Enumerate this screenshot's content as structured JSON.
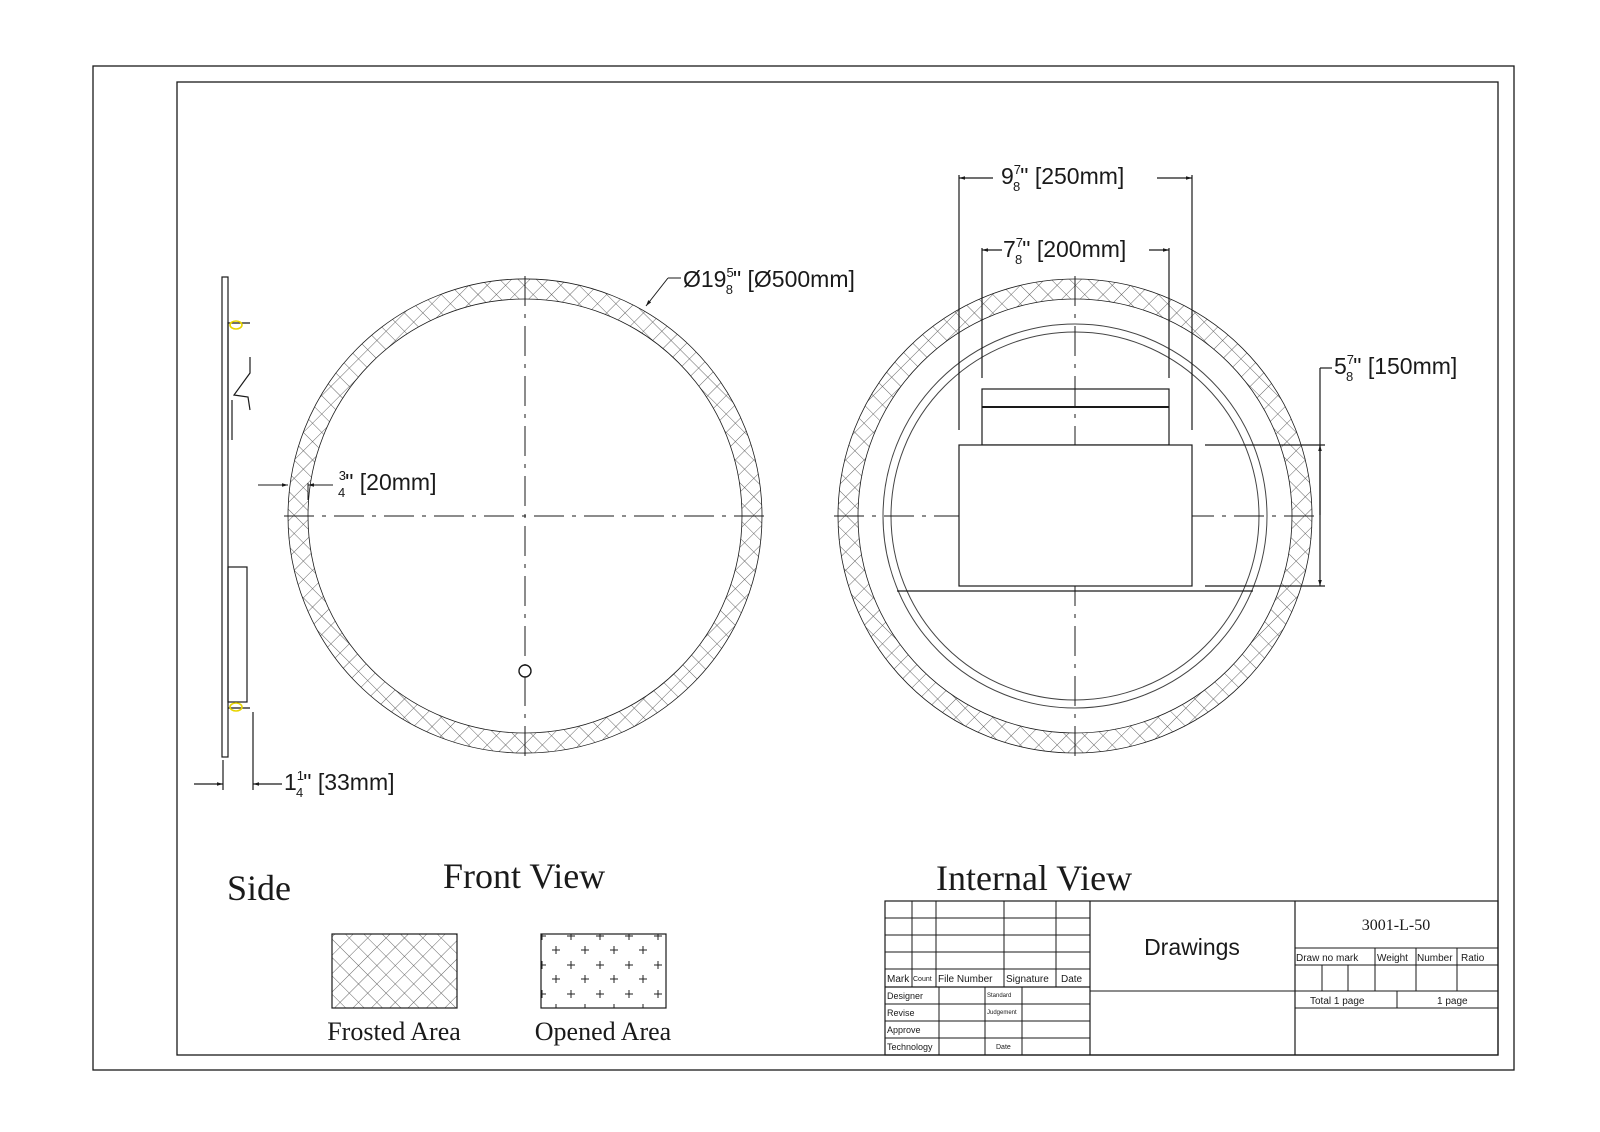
{
  "views": {
    "side": "Side",
    "front": "Front View",
    "internal": "Internal View"
  },
  "dimensions": {
    "diameter": {
      "symbol": "Ø",
      "whole": "19",
      "num": "5",
      "den": "8",
      "rest": "\" [Ø500mm]"
    },
    "frame_width": {
      "whole": "",
      "num": "3",
      "den": "4",
      "rest": "\" [20mm]"
    },
    "thickness": {
      "whole": "1",
      "num": "1",
      "den": "4",
      "rest": "\" [33mm]"
    },
    "box_width": {
      "whole": "9",
      "num": "7",
      "den": "8",
      "rest": "\" [250mm]"
    },
    "box_top_width": {
      "whole": "7",
      "num": "7",
      "den": "8",
      "rest": "\" [200mm]"
    },
    "box_height": {
      "whole": "5",
      "num": "7",
      "den": "8",
      "rest": "\" [150mm]"
    }
  },
  "legend": {
    "frosted": "Frosted Area",
    "opened": "Opened Area"
  },
  "title_block": {
    "header": {
      "mark": "Mark",
      "count": "Count",
      "file_number": "File Number",
      "signature": "Signature",
      "date": "Date"
    },
    "roles": {
      "designer": "Designer",
      "revise": "Revise",
      "approve": "Approve",
      "technology": "Technology",
      "standard": "Standard",
      "judgement": "Judgement",
      "date": "Date"
    },
    "title": "Drawings",
    "part_number": "3001-L-50",
    "info": {
      "draw_no_mark": "Draw no mark",
      "weight": "Weight",
      "number": "Number",
      "ratio": "Ratio"
    },
    "total_pages": "Total  1  page",
    "page": "1  page"
  },
  "colors": {
    "line": "#1a1a1a",
    "hatch": "#555555",
    "accent_yellow": "#e8d400"
  }
}
